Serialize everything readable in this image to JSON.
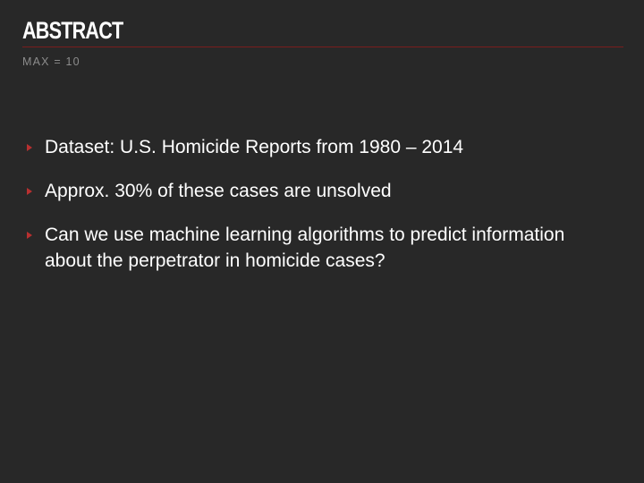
{
  "slide": {
    "title": "ABSTRACT",
    "subtitle": "MAX = 10",
    "accent_color": "#b83030",
    "background_color": "#282828",
    "bullet_icon": "triangle-right-icon",
    "bullets": [
      {
        "text": "Dataset: U.S. Homicide Reports from 1980 – 2014"
      },
      {
        "text": "Approx. 30% of these cases are unsolved"
      },
      {
        "text": "Can we use machine learning algorithms to predict information about the perpetrator in homicide cases?"
      }
    ]
  }
}
